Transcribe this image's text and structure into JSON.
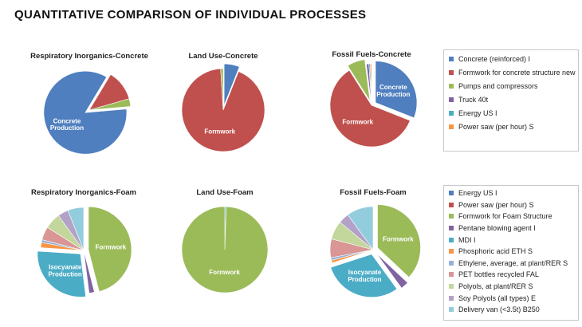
{
  "title": "QUANTITATIVE COMPARISON OF INDIVIDUAL PROCESSES",
  "legends": {
    "concrete": [
      {
        "label": "Concrete (reinforced) I",
        "color": "#4f7fbf"
      },
      {
        "label": "Formwork for concrete structure new",
        "color": "#c0504d"
      },
      {
        "label": "Pumps and compressors",
        "color": "#9bbb59"
      },
      {
        "label": "Truck 40t",
        "color": "#8064a2"
      },
      {
        "label": "Energy US I",
        "color": "#4bacc6"
      },
      {
        "label": "Power saw (per hour) S",
        "color": "#f79646"
      }
    ],
    "foam": [
      {
        "label": "Energy US I",
        "color": "#4f7fbf"
      },
      {
        "label": "Power saw (per hour) S",
        "color": "#c0504d"
      },
      {
        "label": "Formwork for Foam Structure",
        "color": "#9bbb59"
      },
      {
        "label": "Pentane blowing agent I",
        "color": "#8064a2"
      },
      {
        "label": "MDI I",
        "color": "#4bacc6"
      },
      {
        "label": "Phosphoric acid ETH S",
        "color": "#f79646"
      },
      {
        "label": "Ethylene, average, at plant/RER S",
        "color": "#95b3d7"
      },
      {
        "label": "PET bottles recycled FAL",
        "color": "#d99694"
      },
      {
        "label": "Polyols, at plant/RER S",
        "color": "#c3d69b"
      },
      {
        "label": "Soy Polyols (all types) E",
        "color": "#b3a2c7"
      },
      {
        "label": "Delivery van (<3.5t) B250",
        "color": "#93cddd"
      }
    ]
  },
  "chart_data": [
    {
      "type": "pie",
      "title": "Respiratory Inorganics-Concrete",
      "start_angle": 85,
      "slices": [
        {
          "name": "Concrete (reinforced) I",
          "value": 85,
          "color": "#4f7fbf",
          "label": "Concrete Production",
          "explode": true
        },
        {
          "name": "Formwork for concrete structure new",
          "value": 12,
          "color": "#c0504d",
          "label": ""
        },
        {
          "name": "Pumps and compressors",
          "value": 3,
          "color": "#9bbb59",
          "label": ""
        }
      ]
    },
    {
      "type": "pie",
      "title": "Land Use-Concrete",
      "start_angle": 0,
      "slices": [
        {
          "name": "Concrete (reinforced) I",
          "value": 6,
          "color": "#4f7fbf",
          "label": "",
          "explode": true
        },
        {
          "name": "Formwork for concrete structure new",
          "value": 93,
          "color": "#c0504d",
          "label": "Formwork"
        },
        {
          "name": "Pumps and compressors",
          "value": 1,
          "color": "#9bbb59",
          "label": ""
        }
      ]
    },
    {
      "type": "pie",
      "title": "Fossil Fuels-Concrete",
      "start_angle": 0,
      "slices": [
        {
          "name": "Concrete (reinforced) I",
          "value": 31,
          "color": "#4f7fbf",
          "label": "Concrete Production",
          "explode": true
        },
        {
          "name": "Formwork for concrete structure new",
          "value": 60,
          "color": "#c0504d",
          "label": "Formwork"
        },
        {
          "name": "Pumps and compressors",
          "value": 7,
          "color": "#9bbb59",
          "label": "",
          "explode": true
        },
        {
          "name": "Truck 40t",
          "value": 1,
          "color": "#8064a2",
          "label": ""
        },
        {
          "name": "Energy US I",
          "value": 0.5,
          "color": "#4bacc6",
          "label": ""
        },
        {
          "name": "Power saw (per hour) S",
          "value": 0.5,
          "color": "#f79646",
          "label": ""
        }
      ]
    },
    {
      "type": "pie",
      "title": "Respiratory Inorganics-Foam",
      "start_angle": 0,
      "slices": [
        {
          "name": "Formwork for Foam Structure",
          "value": 46,
          "color": "#9bbb59",
          "label": "Formwork",
          "explode": true
        },
        {
          "name": "Pentane blowing agent I",
          "value": 2,
          "color": "#8064a2",
          "label": ""
        },
        {
          "name": "MDI I",
          "value": 28,
          "color": "#4bacc6",
          "label": "Isocyanate Production",
          "explode": true
        },
        {
          "name": "Phosphoric acid ETH S",
          "value": 2,
          "color": "#f79646",
          "label": ""
        },
        {
          "name": "Ethylene, average, at plant/RER S",
          "value": 1,
          "color": "#95b3d7",
          "label": ""
        },
        {
          "name": "PET bottles recycled FAL",
          "value": 5,
          "color": "#d99694",
          "label": ""
        },
        {
          "name": "Polyols, at plant/RER S",
          "value": 6,
          "color": "#c3d69b",
          "label": ""
        },
        {
          "name": "Soy Polyols (all types) E",
          "value": 4,
          "color": "#b3a2c7",
          "label": ""
        },
        {
          "name": "Delivery van (<3.5t) B250",
          "value": 6,
          "color": "#93cddd",
          "label": ""
        }
      ]
    },
    {
      "type": "pie",
      "title": "Land Use-Foam",
      "start_angle": 0,
      "slices": [
        {
          "name": "MDI I",
          "value": 0.5,
          "color": "#4bacc6",
          "label": ""
        },
        {
          "name": "Formwork for Foam Structure",
          "value": 99.5,
          "color": "#9bbb59",
          "label": "Formwork"
        }
      ]
    },
    {
      "type": "pie",
      "title": "Fossil Fuels-Foam",
      "start_angle": 0,
      "slices": [
        {
          "name": "Formwork for Foam Structure",
          "value": 37,
          "color": "#9bbb59",
          "label": "Formwork",
          "explode": true
        },
        {
          "name": "Pentane blowing agent I",
          "value": 3,
          "color": "#8064a2",
          "label": "",
          "explode": true
        },
        {
          "name": "MDI I",
          "value": 30,
          "color": "#4bacc6",
          "label": "Isocyanate Production",
          "explode": true
        },
        {
          "name": "Phosphoric acid ETH S",
          "value": 1,
          "color": "#f79646",
          "label": ""
        },
        {
          "name": "Ethylene, average, at plant/RER S",
          "value": 1,
          "color": "#95b3d7",
          "label": ""
        },
        {
          "name": "PET bottles recycled FAL",
          "value": 7,
          "color": "#d99694",
          "label": ""
        },
        {
          "name": "Polyols, at plant/RER S",
          "value": 7,
          "color": "#c3d69b",
          "label": ""
        },
        {
          "name": "Soy Polyols (all types) E",
          "value": 4,
          "color": "#b3a2c7",
          "label": ""
        },
        {
          "name": "Delivery van (<3.5t) B250",
          "value": 10,
          "color": "#93cddd",
          "label": ""
        }
      ]
    }
  ]
}
